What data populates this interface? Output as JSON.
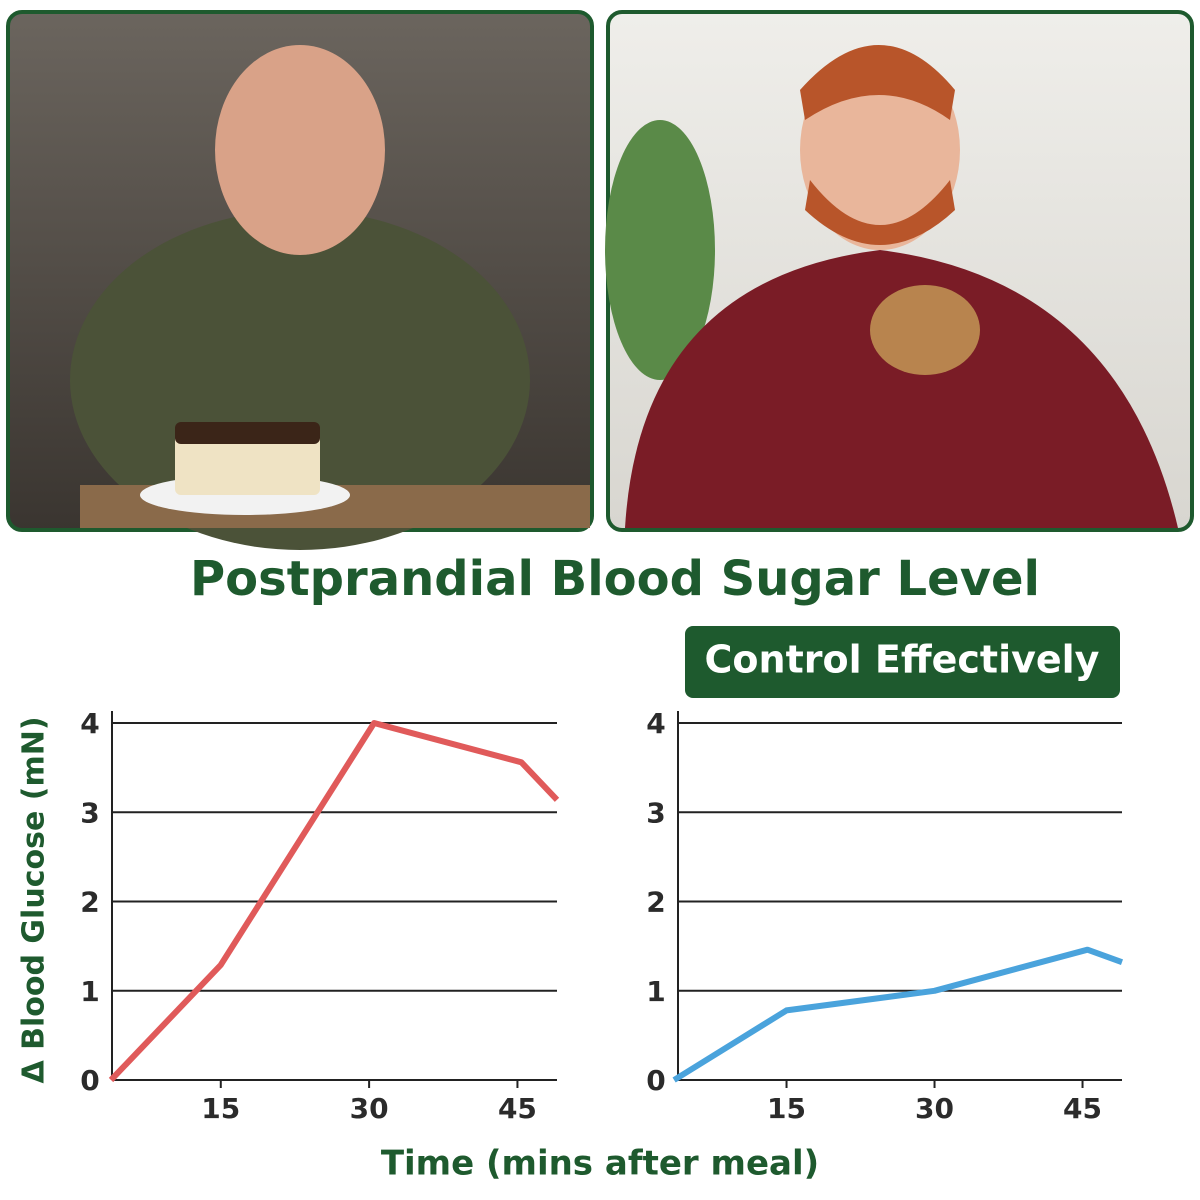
{
  "title": "Postprandial Blood Sugar Level",
  "badge": "Control Effectively",
  "y_label": "Δ Blood Glucose (mN)",
  "x_label": "Time (mins after meal)",
  "chart_data": [
    {
      "type": "line",
      "x": [
        3.9,
        15,
        30.5,
        45.4,
        49
      ],
      "values": [
        0,
        1.29,
        4,
        3.56,
        3.14
      ],
      "color": "#e05a5a",
      "xlim": [
        4,
        49
      ],
      "xticks": [
        15,
        30,
        45
      ],
      "ylim": [
        0,
        4
      ],
      "yticks": [
        0,
        1,
        2,
        3,
        4
      ],
      "grid": true
    },
    {
      "type": "line",
      "x": [
        3.6,
        15,
        30,
        45.5,
        49
      ],
      "values": [
        0,
        0.78,
        1.0,
        1.46,
        1.32
      ],
      "color": "#4aa3dc",
      "xlim": [
        4,
        49
      ],
      "xticks": [
        15,
        30,
        45
      ],
      "ylim": [
        0,
        4
      ],
      "yticks": [
        0,
        1,
        2,
        3,
        4
      ],
      "grid": true
    }
  ]
}
